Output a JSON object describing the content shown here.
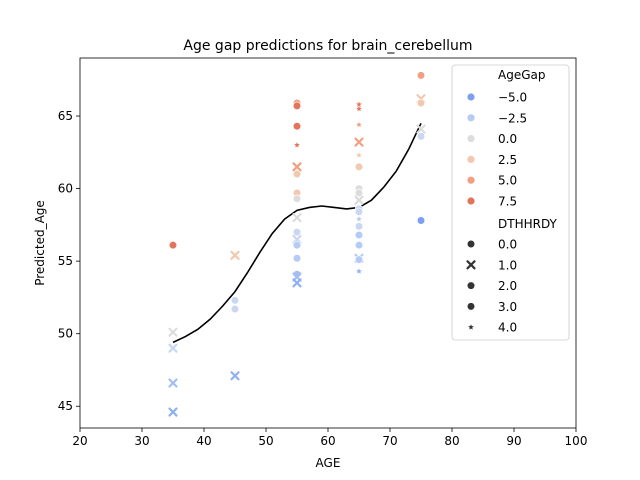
{
  "chart_data": {
    "type": "scatter",
    "title": "Age gap predictions for brain_cerebellum",
    "xlabel": "AGE",
    "ylabel": "Predicted_Age",
    "xlim": [
      20,
      100
    ],
    "ylim": [
      43.5,
      69.0
    ],
    "xticks": [
      20,
      30,
      40,
      50,
      60,
      70,
      80,
      90,
      100
    ],
    "yticks": [
      45,
      50,
      55,
      60,
      65
    ],
    "xtick_labels": [
      "20",
      "30",
      "40",
      "50",
      "60",
      "70",
      "80",
      "90",
      "100"
    ],
    "ytick_labels": [
      "45",
      "50",
      "55",
      "60",
      "65"
    ],
    "grid": false,
    "legend_position": "top-right",
    "legend": {
      "hue_title": "AgeGap",
      "hue_entries": [
        {
          "label": "−5.0",
          "color": "#7b9ff2"
        },
        {
          "label": "−2.5",
          "color": "#b3cbf6"
        },
        {
          "label": "0.0",
          "color": "#dcdcdc"
        },
        {
          "label": "2.5",
          "color": "#f2c8b0"
        },
        {
          "label": "5.0",
          "color": "#f19f80"
        },
        {
          "label": "7.5",
          "color": "#e3735a"
        }
      ],
      "style_title": "DTHHRDY",
      "style_entries": [
        {
          "label": "0.0",
          "marker": "circle"
        },
        {
          "label": "1.0",
          "marker": "x"
        },
        {
          "label": "2.0",
          "marker": "circle"
        },
        {
          "label": "3.0",
          "marker": "circle"
        },
        {
          "label": "4.0",
          "marker": "star"
        }
      ]
    },
    "points": [
      {
        "x": 35,
        "y": 56.1,
        "m": "circle",
        "c": "#e3735a"
      },
      {
        "x": 35,
        "y": 50.1,
        "m": "x",
        "c": "#dcdcdc"
      },
      {
        "x": 35,
        "y": 49.0,
        "m": "x",
        "c": "#c9d7f0"
      },
      {
        "x": 35,
        "y": 46.6,
        "m": "x",
        "c": "#a4bef4"
      },
      {
        "x": 35,
        "y": 44.6,
        "m": "x",
        "c": "#8fb0f2"
      },
      {
        "x": 45,
        "y": 55.4,
        "m": "x",
        "c": "#f2c8b0"
      },
      {
        "x": 45,
        "y": 52.3,
        "m": "circle",
        "c": "#c9d7f0"
      },
      {
        "x": 45,
        "y": 51.7,
        "m": "circle",
        "c": "#c9d7f0"
      },
      {
        "x": 45,
        "y": 47.1,
        "m": "x",
        "c": "#8fb0f2"
      },
      {
        "x": 55,
        "y": 65.9,
        "m": "circle",
        "c": "#f19f80"
      },
      {
        "x": 55,
        "y": 65.7,
        "m": "circle",
        "c": "#e3735a"
      },
      {
        "x": 55,
        "y": 64.3,
        "m": "circle",
        "c": "#e3735a"
      },
      {
        "x": 55,
        "y": 63.0,
        "m": "star",
        "c": "#e3735a"
      },
      {
        "x": 55,
        "y": 61.5,
        "m": "x",
        "c": "#f19f80"
      },
      {
        "x": 55,
        "y": 61.0,
        "m": "circle",
        "c": "#f2c8b0"
      },
      {
        "x": 55,
        "y": 59.7,
        "m": "circle",
        "c": "#f2c8b0"
      },
      {
        "x": 55,
        "y": 59.3,
        "m": "circle",
        "c": "#dcdcdc"
      },
      {
        "x": 55,
        "y": 58.0,
        "m": "x",
        "c": "#dcdcdc"
      },
      {
        "x": 55,
        "y": 57.0,
        "m": "circle",
        "c": "#c9d7f0"
      },
      {
        "x": 55,
        "y": 56.5,
        "m": "x",
        "c": "#c9d7f0"
      },
      {
        "x": 55,
        "y": 56.1,
        "m": "circle",
        "c": "#b3cbf6"
      },
      {
        "x": 55,
        "y": 55.2,
        "m": "circle",
        "c": "#b3cbf6"
      },
      {
        "x": 55,
        "y": 54.1,
        "m": "circle",
        "c": "#a4bef4"
      },
      {
        "x": 55,
        "y": 53.9,
        "m": "x",
        "c": "#a4bef4"
      },
      {
        "x": 55,
        "y": 53.5,
        "m": "x",
        "c": "#8fb0f2"
      },
      {
        "x": 65,
        "y": 65.8,
        "m": "star",
        "c": "#e3735a"
      },
      {
        "x": 65,
        "y": 65.5,
        "m": "star",
        "c": "#e3735a"
      },
      {
        "x": 65,
        "y": 64.4,
        "m": "star",
        "c": "#f19f80"
      },
      {
        "x": 65,
        "y": 63.2,
        "m": "x",
        "c": "#f19f80"
      },
      {
        "x": 65,
        "y": 62.3,
        "m": "star",
        "c": "#f2c8b0"
      },
      {
        "x": 65,
        "y": 61.5,
        "m": "circle",
        "c": "#f2c8b0"
      },
      {
        "x": 65,
        "y": 60.0,
        "m": "circle",
        "c": "#dcdcdc"
      },
      {
        "x": 65,
        "y": 59.7,
        "m": "circle",
        "c": "#dcdcdc"
      },
      {
        "x": 65,
        "y": 59.2,
        "m": "x",
        "c": "#dcdcdc"
      },
      {
        "x": 65,
        "y": 58.6,
        "m": "circle",
        "c": "#c9d7f0"
      },
      {
        "x": 65,
        "y": 58.4,
        "m": "circle",
        "c": "#c9d7f0"
      },
      {
        "x": 65,
        "y": 57.9,
        "m": "star",
        "c": "#b3cbf6"
      },
      {
        "x": 65,
        "y": 57.4,
        "m": "circle",
        "c": "#c9d7f0"
      },
      {
        "x": 65,
        "y": 56.8,
        "m": "circle",
        "c": "#b3cbf6"
      },
      {
        "x": 65,
        "y": 56.1,
        "m": "circle",
        "c": "#b3cbf6"
      },
      {
        "x": 65,
        "y": 55.2,
        "m": "x",
        "c": "#b3cbf6"
      },
      {
        "x": 65,
        "y": 55.1,
        "m": "circle",
        "c": "#b3cbf6"
      },
      {
        "x": 65,
        "y": 54.3,
        "m": "star",
        "c": "#8fb0f2"
      },
      {
        "x": 75,
        "y": 67.8,
        "m": "circle",
        "c": "#f19f80"
      },
      {
        "x": 75,
        "y": 66.2,
        "m": "x",
        "c": "#f2c8b0"
      },
      {
        "x": 75,
        "y": 65.9,
        "m": "circle",
        "c": "#f2c8b0"
      },
      {
        "x": 75,
        "y": 64.1,
        "m": "x",
        "c": "#dcdcdc"
      },
      {
        "x": 75,
        "y": 63.6,
        "m": "circle",
        "c": "#c9d7f0"
      },
      {
        "x": 75,
        "y": 57.8,
        "m": "circle",
        "c": "#7b9ff2"
      }
    ],
    "trend_line": {
      "color": "#000000",
      "x": [
        35,
        37,
        39,
        41,
        43,
        45,
        47,
        49,
        51,
        53,
        55,
        57,
        59,
        61,
        63,
        65,
        67,
        69,
        71,
        73,
        75
      ],
      "y": [
        49.4,
        49.8,
        50.3,
        51.0,
        51.9,
        52.9,
        54.2,
        55.6,
        56.9,
        57.9,
        58.5,
        58.7,
        58.8,
        58.7,
        58.6,
        58.7,
        59.2,
        60.1,
        61.2,
        62.7,
        64.5
      ]
    }
  }
}
